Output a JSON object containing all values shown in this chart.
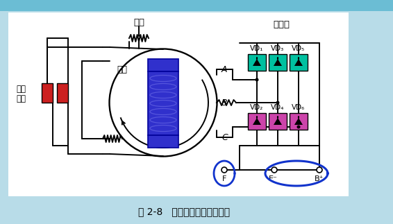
{
  "title": "图 2-8   交流发电机工作原理图",
  "bg_color": "#b8dce8",
  "panel_bg": "#ffffff",
  "banner_color": "#6bbdd4",
  "stator_label": "定子",
  "rotor_label": "转子",
  "rectifier_label": "整流器",
  "brush_label_1": "滑环",
  "brush_label_2": "电刷",
  "vd_top": [
    "VD₁",
    "VD₃",
    "VD₅"
  ],
  "vd_bot": [
    "VD₂",
    "VD₄",
    "VD₆"
  ],
  "vd_top_color": "#00c0a0",
  "vd_bot_color": "#cc44aa",
  "rotor_color": "#3030cc",
  "rotor_edge": "#000099",
  "brush_color": "#cc2020",
  "line_color": "#000000",
  "anno_circle_color": "#1133cc",
  "lw": 1.4
}
